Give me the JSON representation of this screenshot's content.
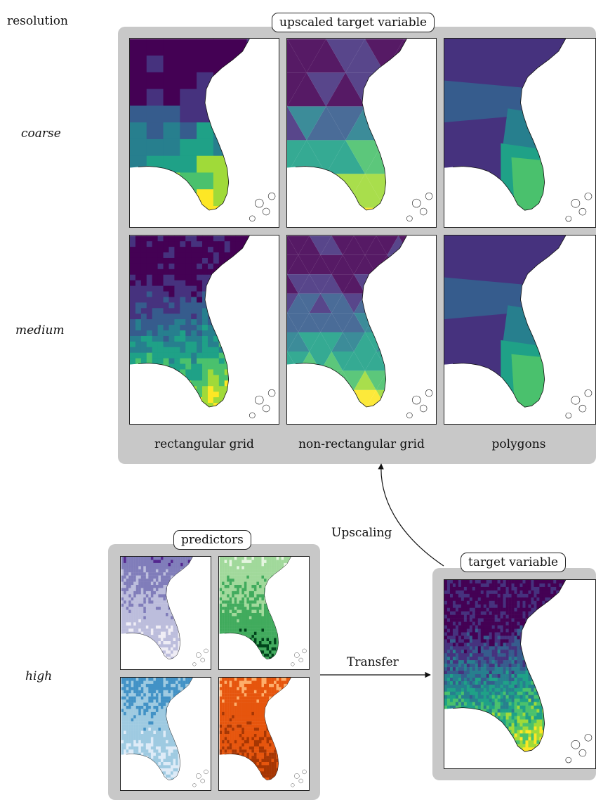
{
  "resolution_header": "resolution",
  "rows": {
    "coarse": "coarse",
    "medium": "medium",
    "high": "high"
  },
  "upscaled_group": {
    "title": "upscaled target variable",
    "columns": [
      "rectangular grid",
      "non-rectangular grid",
      "polygons"
    ]
  },
  "predictors_group": {
    "title": "predictors"
  },
  "target_group": {
    "title": "target variable"
  },
  "arrows": {
    "upscaling": "Upscaling",
    "transfer": "Transfer"
  },
  "colors": {
    "viridis": [
      "#440154",
      "#46327e",
      "#365c8d",
      "#277f8e",
      "#1fa187",
      "#4ac16d",
      "#a0da39",
      "#fde725"
    ],
    "purples": [
      "#efedf5",
      "#bcbddc",
      "#807dba",
      "#54278f"
    ],
    "greens": [
      "#e5f5e0",
      "#a1d99b",
      "#41ab5d",
      "#00441b"
    ],
    "blues": [
      "#deebf7",
      "#9ecae1",
      "#4292c6",
      "#08306b"
    ],
    "oranges": [
      "#fee6ce",
      "#fdae6b",
      "#e6550d",
      "#a63603"
    ]
  }
}
